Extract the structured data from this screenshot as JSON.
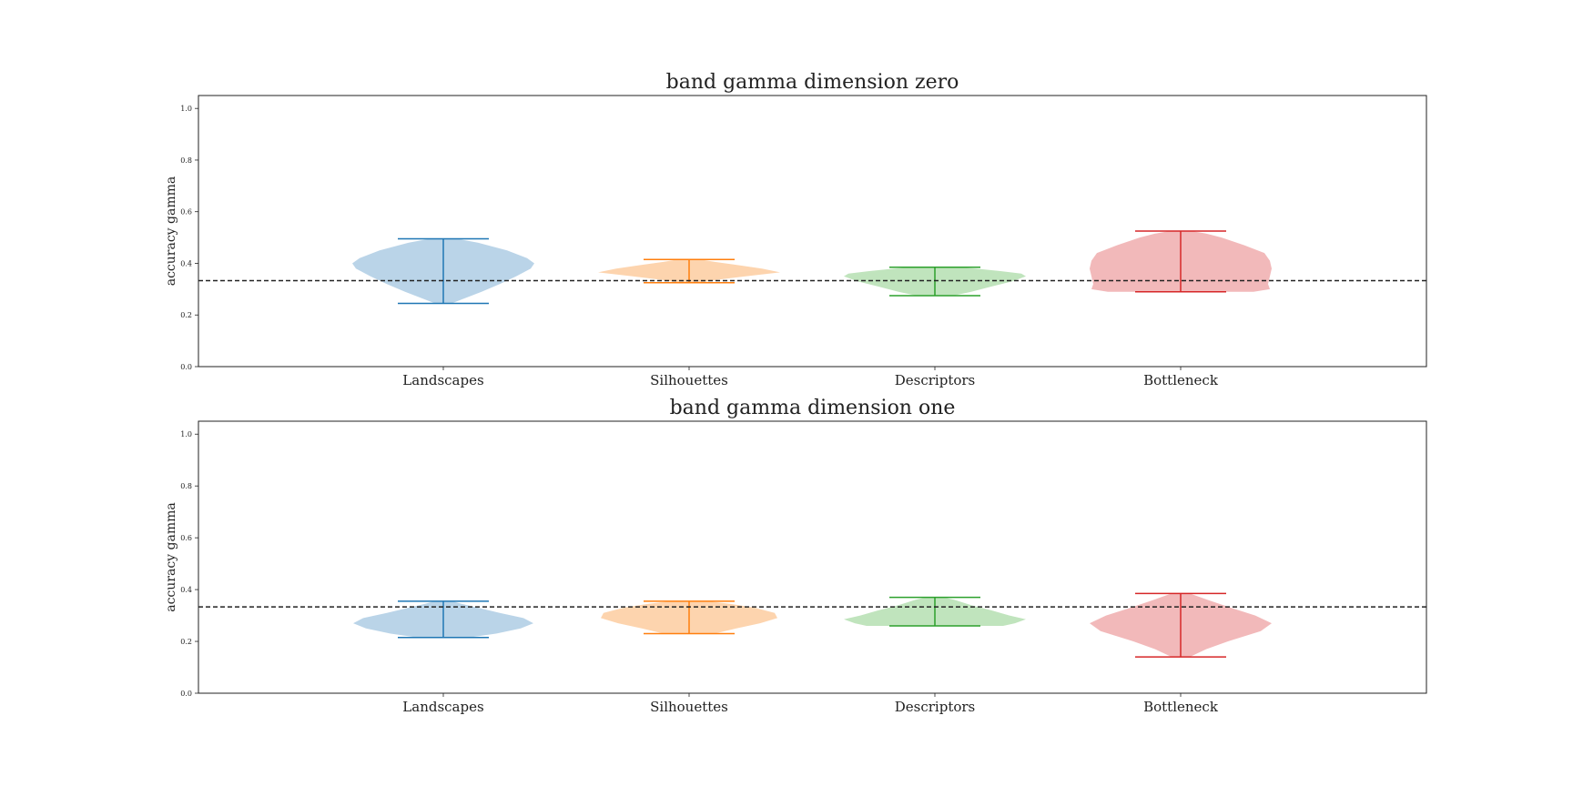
{
  "chart_data": [
    {
      "type": "violin",
      "title": "band gamma dimension zero",
      "xlabel": "",
      "ylabel": "accuracy gamma",
      "ylim": [
        0.0,
        1.05
      ],
      "yticks": [
        "0.0",
        "0.2",
        "0.4",
        "0.6",
        "0.8",
        "1.0"
      ],
      "categories": [
        "Landscapes",
        "Silhouettes",
        "Descriptors",
        "Bottleneck"
      ],
      "baseline": 0.333,
      "series": [
        {
          "category": "Landscapes",
          "color": "#1f77b4",
          "fill": "#bad4e8",
          "min": 0.245,
          "max": 0.495,
          "profile": [
            [
              0.245,
              0.09
            ],
            [
              0.26,
              0.2
            ],
            [
              0.29,
              0.42
            ],
            [
              0.32,
              0.62
            ],
            [
              0.35,
              0.8
            ],
            [
              0.38,
              0.96
            ],
            [
              0.4,
              1.0
            ],
            [
              0.42,
              0.92
            ],
            [
              0.45,
              0.7
            ],
            [
              0.48,
              0.38
            ],
            [
              0.495,
              0.15
            ]
          ]
        },
        {
          "category": "Silhouettes",
          "color": "#ff7f0e",
          "fill": "#fdd4ae",
          "min": 0.325,
          "max": 0.415,
          "profile": [
            [
              0.325,
              0.12
            ],
            [
              0.335,
              0.28
            ],
            [
              0.35,
              0.62
            ],
            [
              0.365,
              1.0
            ],
            [
              0.38,
              0.8
            ],
            [
              0.395,
              0.5
            ],
            [
              0.405,
              0.3
            ],
            [
              0.415,
              0.12
            ]
          ]
        },
        {
          "category": "Descriptors",
          "color": "#2ca02c",
          "fill": "#c0e4bd",
          "min": 0.275,
          "max": 0.385,
          "profile": [
            [
              0.275,
              0.2
            ],
            [
              0.29,
              0.4
            ],
            [
              0.31,
              0.62
            ],
            [
              0.33,
              0.85
            ],
            [
              0.35,
              1.0
            ],
            [
              0.36,
              0.95
            ],
            [
              0.37,
              0.72
            ],
            [
              0.38,
              0.45
            ],
            [
              0.385,
              0.25
            ]
          ]
        },
        {
          "category": "Bottleneck",
          "color": "#d62728",
          "fill": "#f2b9ba",
          "min": 0.29,
          "max": 0.525,
          "profile": [
            [
              0.29,
              0.8
            ],
            [
              0.3,
              0.98
            ],
            [
              0.32,
              0.96
            ],
            [
              0.35,
              0.98
            ],
            [
              0.38,
              1.0
            ],
            [
              0.41,
              0.98
            ],
            [
              0.44,
              0.92
            ],
            [
              0.47,
              0.7
            ],
            [
              0.5,
              0.45
            ],
            [
              0.515,
              0.28
            ],
            [
              0.525,
              0.12
            ]
          ]
        }
      ]
    },
    {
      "type": "violin",
      "title": "band gamma dimension one",
      "xlabel": "",
      "ylabel": "accuracy gamma",
      "ylim": [
        0.0,
        1.05
      ],
      "yticks": [
        "0.0",
        "0.2",
        "0.4",
        "0.6",
        "0.8",
        "1.0"
      ],
      "categories": [
        "Landscapes",
        "Silhouettes",
        "Descriptors",
        "Bottleneck"
      ],
      "baseline": 0.333,
      "series": [
        {
          "category": "Landscapes",
          "color": "#1f77b4",
          "fill": "#bad4e8",
          "min": 0.215,
          "max": 0.355,
          "profile": [
            [
              0.215,
              0.28
            ],
            [
              0.23,
              0.58
            ],
            [
              0.25,
              0.85
            ],
            [
              0.27,
              0.99
            ],
            [
              0.29,
              0.88
            ],
            [
              0.31,
              0.62
            ],
            [
              0.33,
              0.38
            ],
            [
              0.345,
              0.2
            ],
            [
              0.355,
              0.1
            ]
          ]
        },
        {
          "category": "Silhouettes",
          "color": "#ff7f0e",
          "fill": "#fdd4ae",
          "min": 0.23,
          "max": 0.355,
          "profile": [
            [
              0.23,
              0.28
            ],
            [
              0.25,
              0.52
            ],
            [
              0.27,
              0.78
            ],
            [
              0.29,
              0.97
            ],
            [
              0.31,
              0.94
            ],
            [
              0.33,
              0.72
            ],
            [
              0.345,
              0.45
            ],
            [
              0.355,
              0.2
            ]
          ]
        },
        {
          "category": "Descriptors",
          "color": "#2ca02c",
          "fill": "#c0e4bd",
          "min": 0.26,
          "max": 0.37,
          "profile": [
            [
              0.26,
              0.75
            ],
            [
              0.27,
              0.88
            ],
            [
              0.285,
              1.0
            ],
            [
              0.3,
              0.82
            ],
            [
              0.32,
              0.62
            ],
            [
              0.34,
              0.4
            ],
            [
              0.36,
              0.22
            ],
            [
              0.37,
              0.1
            ]
          ]
        },
        {
          "category": "Bottleneck",
          "color": "#d62728",
          "fill": "#f2b9ba",
          "min": 0.14,
          "max": 0.385,
          "profile": [
            [
              0.14,
              0.1
            ],
            [
              0.17,
              0.28
            ],
            [
              0.2,
              0.52
            ],
            [
              0.24,
              0.88
            ],
            [
              0.27,
              1.0
            ],
            [
              0.3,
              0.82
            ],
            [
              0.33,
              0.55
            ],
            [
              0.36,
              0.3
            ],
            [
              0.385,
              0.1
            ]
          ]
        }
      ]
    }
  ]
}
